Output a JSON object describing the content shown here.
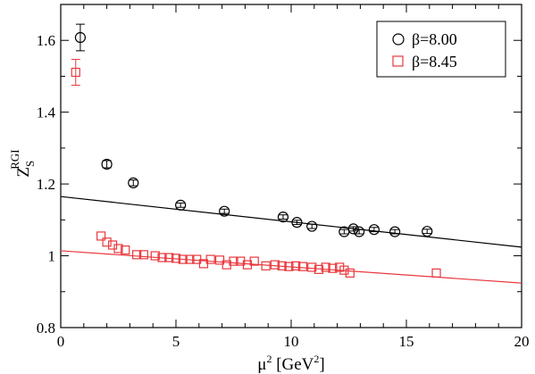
{
  "chart_data": {
    "type": "scatter",
    "x_label": {
      "base": "μ",
      "sup": "2",
      "unit_open": " [GeV",
      "unit_sup": "2",
      "unit_close": "]"
    },
    "y_label": {
      "base": "Z",
      "sub": "S",
      "sup": "RGI"
    },
    "xlim": [
      0,
      20
    ],
    "ylim": [
      0.8,
      1.7
    ],
    "x_ticks": [
      0,
      5,
      10,
      15,
      20
    ],
    "y_ticks": [
      0.8,
      1,
      1.2,
      1.4,
      1.6
    ],
    "y_tick_labels": [
      "0.8",
      "1",
      "1.2",
      "1.4",
      "1.6"
    ],
    "grid": false,
    "legend_position": "top-right",
    "series": [
      {
        "name": "β=8.00",
        "marker": "circle",
        "color": "#000000",
        "points": [
          {
            "x": 0.85,
            "y": 1.608,
            "err": 0.037
          },
          {
            "x": 2.0,
            "y": 1.255,
            "err": 0.01
          },
          {
            "x": 3.15,
            "y": 1.203,
            "err": 0.008
          },
          {
            "x": 5.2,
            "y": 1.141,
            "err": 0.006
          },
          {
            "x": 7.1,
            "y": 1.124,
            "err": 0.006
          },
          {
            "x": 9.65,
            "y": 1.108,
            "err": 0.006
          },
          {
            "x": 10.25,
            "y": 1.093,
            "err": 0.006
          },
          {
            "x": 10.9,
            "y": 1.082,
            "err": 0.006
          },
          {
            "x": 12.3,
            "y": 1.067,
            "err": 0.006
          },
          {
            "x": 12.7,
            "y": 1.075,
            "err": 0.006
          },
          {
            "x": 12.95,
            "y": 1.067,
            "err": 0.006
          },
          {
            "x": 13.6,
            "y": 1.073,
            "err": 0.006
          },
          {
            "x": 14.5,
            "y": 1.067,
            "err": 0.006
          },
          {
            "x": 15.9,
            "y": 1.068,
            "err": 0.006
          }
        ],
        "fit_line": {
          "x": [
            0,
            20
          ],
          "y": [
            1.165,
            1.024
          ]
        }
      },
      {
        "name": "β=8.45",
        "marker": "square",
        "color": "#e8383d",
        "points": [
          {
            "x": 0.65,
            "y": 1.511,
            "err": 0.036
          },
          {
            "x": 1.75,
            "y": 1.055
          },
          {
            "x": 2.0,
            "y": 1.038
          },
          {
            "x": 2.25,
            "y": 1.03
          },
          {
            "x": 2.5,
            "y": 1.02
          },
          {
            "x": 2.8,
            "y": 1.016
          },
          {
            "x": 3.3,
            "y": 1.003
          },
          {
            "x": 3.6,
            "y": 1.003
          },
          {
            "x": 4.1,
            "y": 1.0
          },
          {
            "x": 4.4,
            "y": 0.995
          },
          {
            "x": 4.7,
            "y": 0.995
          },
          {
            "x": 5.0,
            "y": 0.993
          },
          {
            "x": 5.3,
            "y": 0.99
          },
          {
            "x": 5.6,
            "y": 0.99
          },
          {
            "x": 5.9,
            "y": 0.99
          },
          {
            "x": 6.2,
            "y": 0.978
          },
          {
            "x": 6.5,
            "y": 0.99
          },
          {
            "x": 6.9,
            "y": 0.988
          },
          {
            "x": 7.2,
            "y": 0.975
          },
          {
            "x": 7.5,
            "y": 0.985
          },
          {
            "x": 7.8,
            "y": 0.985
          },
          {
            "x": 8.1,
            "y": 0.975
          },
          {
            "x": 8.4,
            "y": 0.985
          },
          {
            "x": 8.9,
            "y": 0.972
          },
          {
            "x": 9.3,
            "y": 0.975
          },
          {
            "x": 9.6,
            "y": 0.972
          },
          {
            "x": 9.9,
            "y": 0.97
          },
          {
            "x": 10.2,
            "y": 0.972
          },
          {
            "x": 10.5,
            "y": 0.97
          },
          {
            "x": 10.9,
            "y": 0.968
          },
          {
            "x": 11.2,
            "y": 0.962
          },
          {
            "x": 11.5,
            "y": 0.968
          },
          {
            "x": 11.8,
            "y": 0.965
          },
          {
            "x": 12.1,
            "y": 0.968
          },
          {
            "x": 12.3,
            "y": 0.96
          },
          {
            "x": 12.55,
            "y": 0.952
          },
          {
            "x": 16.3,
            "y": 0.952
          }
        ],
        "fit_line": {
          "x": [
            0,
            20
          ],
          "y": [
            1.014,
            0.924
          ]
        }
      }
    ]
  }
}
